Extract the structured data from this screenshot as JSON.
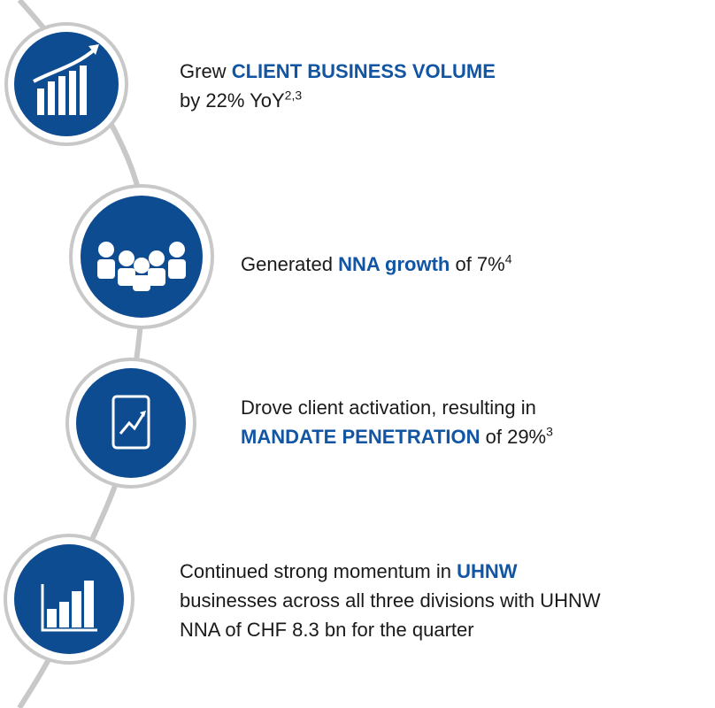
{
  "items": [
    {
      "lines": [
        [
          {
            "text": "Grew "
          },
          {
            "text": "CLIENT BUSINESS VOLUME",
            "bold": true
          }
        ],
        [
          {
            "text": "by 22% YoY"
          },
          {
            "text": "2,3",
            "sup": true
          }
        ]
      ]
    },
    {
      "lines": [
        [
          {
            "text": "Generated "
          },
          {
            "text": "NNA growth",
            "bold": true
          },
          {
            "text": " of 7%"
          },
          {
            "text": "4",
            "sup": true
          }
        ]
      ]
    },
    {
      "lines": [
        [
          {
            "text": "Drove client activation, resulting in"
          }
        ],
        [
          {
            "text": "MANDATE PENETRATION",
            "bold": true
          },
          {
            "text": " of 29%"
          },
          {
            "text": "3",
            "sup": true
          }
        ]
      ]
    },
    {
      "lines": [
        [
          {
            "text": "Continued strong momentum in "
          },
          {
            "text": "UHNW",
            "bold": true
          }
        ],
        [
          {
            "text": "businesses across all three divisions with UHNW"
          }
        ],
        [
          {
            "text": "NNA of CHF 8.3 bn for the quarter"
          }
        ]
      ]
    }
  ]
}
